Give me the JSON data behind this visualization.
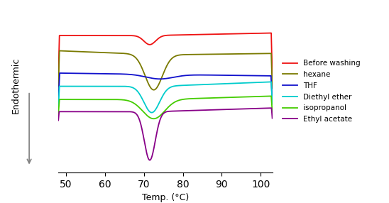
{
  "xlim": [
    48,
    103
  ],
  "xlabel": "Temp. (°C)",
  "ylabel": "Endothermic",
  "colors": {
    "before_washing": "#ee1111",
    "hexane": "#7a7a00",
    "THF": "#1111cc",
    "diethyl_ether": "#00cccc",
    "isopropanol": "#44cc00",
    "ethyl_acetate": "#880088"
  },
  "legend_labels": [
    "Before washing",
    "hexane",
    "THF",
    "Diethyl ether",
    "isopropanol",
    "Ethyl acetate"
  ],
  "xticks": [
    50,
    60,
    70,
    80,
    90,
    100
  ],
  "figsize": [
    5.48,
    2.86
  ],
  "dpi": 100
}
